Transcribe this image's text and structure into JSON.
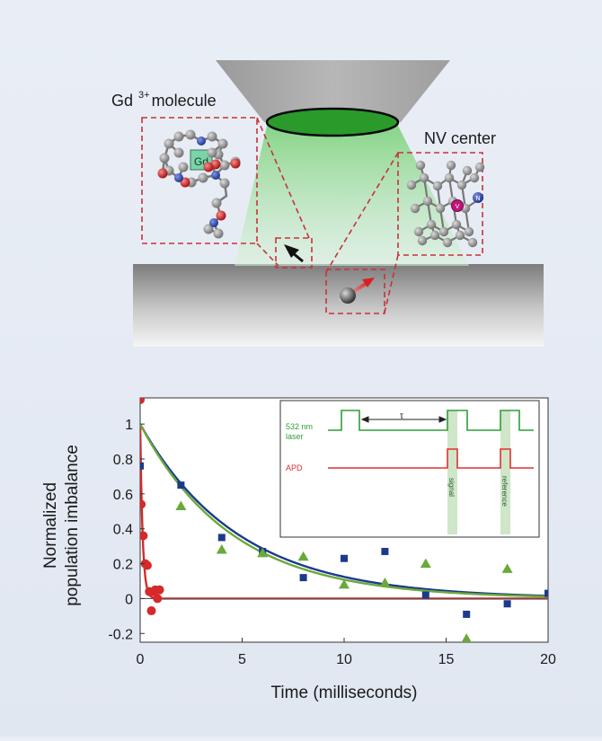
{
  "top_diagram": {
    "gd_label_base": "Gd",
    "gd_label_sup": "3+",
    "gd_label_rest": "molecule",
    "gd_atom_label": "Gd",
    "nv_label": "NV center",
    "n_atom_label": "N",
    "v_atom_label": "V",
    "colors": {
      "objective": "#a9a9a9",
      "lens": "#2e9e2e",
      "beam": "#8fd98f",
      "dashed_box": "#c8323a",
      "surface_top": "#8a8a8a",
      "surface_bottom": "#f4f4f4",
      "atom_carbon": "#8c8c8c",
      "atom_oxygen": "#d01818",
      "atom_nitrogen": "#1f3fa8",
      "gd_atom": "#7cd3a8",
      "vacancy": "#c0147a"
    }
  },
  "chart_data": {
    "type": "scatter",
    "xlabel": "Time (milliseconds)",
    "ylabel_lines": [
      "Normalized",
      "population imbalance"
    ],
    "xlim": [
      0,
      20
    ],
    "ylim": [
      -0.25,
      1.15
    ],
    "xticks": [
      0,
      5,
      10,
      15,
      20
    ],
    "yticks": [
      -0.2,
      0,
      0.2,
      0.4,
      0.6,
      0.8,
      1
    ],
    "ytick_labels": [
      "-0.2",
      "0",
      "0.2",
      "0.4",
      "0.6",
      "0.8",
      "1"
    ],
    "series": [
      {
        "name": "red circles",
        "marker": "circle",
        "color": "#d42a2a",
        "points": [
          [
            0,
            1.14
          ],
          [
            0.05,
            0.54
          ],
          [
            0.15,
            0.36
          ],
          [
            0.25,
            0.2
          ],
          [
            0.35,
            0.19
          ],
          [
            0.45,
            0.04
          ],
          [
            0.55,
            -0.07
          ],
          [
            0.65,
            0.04
          ],
          [
            0.75,
            0.05
          ],
          [
            0.85,
            0.0
          ],
          [
            0.95,
            0.05
          ]
        ]
      },
      {
        "name": "blue squares",
        "marker": "square",
        "color": "#1c3a8c",
        "points": [
          [
            0,
            0.76
          ],
          [
            2,
            0.65
          ],
          [
            4,
            0.35
          ],
          [
            6,
            0.27
          ],
          [
            8,
            0.12
          ],
          [
            10,
            0.23
          ],
          [
            12,
            0.27
          ],
          [
            14,
            0.02
          ],
          [
            16,
            -0.09
          ],
          [
            18,
            -0.03
          ],
          [
            20,
            0.03
          ]
        ]
      },
      {
        "name": "green triangles",
        "marker": "triangle",
        "color": "#6aaa3a",
        "points": [
          [
            2,
            0.53
          ],
          [
            4,
            0.28
          ],
          [
            6,
            0.26
          ],
          [
            8,
            0.24
          ],
          [
            10,
            0.08
          ],
          [
            12,
            0.09
          ],
          [
            14,
            0.2
          ],
          [
            16,
            -0.23
          ],
          [
            18,
            0.17
          ]
        ]
      }
    ],
    "fits": [
      {
        "name": "red fit",
        "color": "#d42a2a",
        "amplitude": 1.0,
        "tau": 0.12
      },
      {
        "name": "blue fit",
        "color": "#1c3a8c",
        "amplitude": 1.0,
        "tau": 4.8
      },
      {
        "name": "green fit",
        "color": "#6aaa3a",
        "amplitude": 1.0,
        "tau": 4.5
      }
    ],
    "inset": {
      "laser_label_1": "532 nm",
      "laser_label_2": "laser",
      "apd_label": "APD",
      "tau_label": "τ",
      "signal_label": "signal",
      "reference_label": "reference",
      "laser_color": "#2f9e3a",
      "apd_color": "#e03030"
    }
  }
}
